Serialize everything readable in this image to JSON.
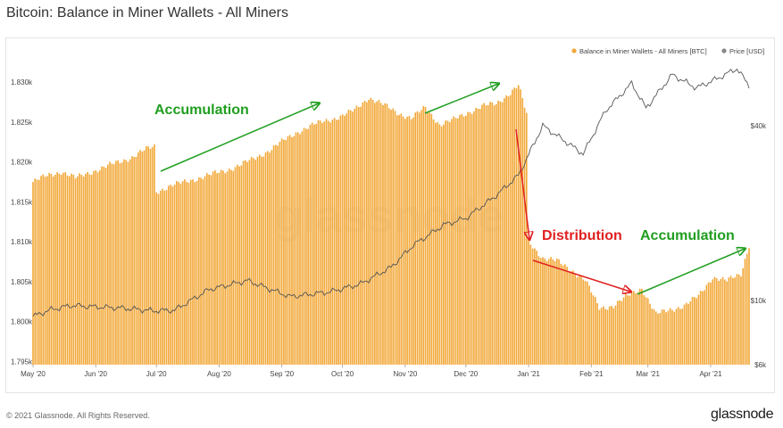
{
  "title": "Bitcoin: Balance in Miner Wallets - All Miners",
  "footer": {
    "copyright": "© 2021 Glassnode. All Rights Reserved.",
    "brand": "glassnode"
  },
  "watermark": "glassnode",
  "colors": {
    "bar": "#f2a93b",
    "price": "#555555",
    "accumulation": "#1f9e1f",
    "distribution": "#e02020"
  },
  "chart_data": {
    "type": "bar",
    "legend": [
      {
        "label": "Balance in Miner Wallets - All Miners [BTC]",
        "color": "#f2a93b"
      },
      {
        "label": "Price [USD]",
        "color": "#888888"
      }
    ],
    "legend_placement": "top-right",
    "y_left": {
      "ticks": [
        "1.830k",
        "1.825k",
        "1.820k",
        "1.815k",
        "1.810k",
        "1.805k",
        "1.800k",
        "1.795k"
      ],
      "range": [
        1794600,
        1833600
      ]
    },
    "y_right": {
      "ticks": [
        "$40k",
        "$10k",
        "$6k"
      ],
      "scale": "log"
    },
    "x_ticks": [
      "May '20",
      "Jun '20",
      "Jul '20",
      "Aug '20",
      "Sep '20",
      "Oct '20",
      "Nov '20",
      "Dec '20",
      "Jan '21",
      "Feb '21",
      "Mar '21",
      "Apr '21"
    ],
    "x_range": [
      "2020-05-01",
      "2021-04-20"
    ],
    "series": [
      {
        "type": "bar",
        "name": "Balance in Miner Wallets - All Miners [BTC]",
        "points": [
          [
            "2020-05-01",
            1817500
          ],
          [
            "2020-05-08",
            1818300
          ],
          [
            "2020-05-15",
            1818800
          ],
          [
            "2020-05-22",
            1818000
          ],
          [
            "2020-05-29",
            1818700
          ],
          [
            "2020-06-05",
            1819300
          ],
          [
            "2020-06-12",
            1820000
          ],
          [
            "2020-06-19",
            1820600
          ],
          [
            "2020-06-26",
            1821600
          ],
          [
            "2020-06-30",
            1822000
          ],
          [
            "2020-07-01",
            1816300
          ],
          [
            "2020-07-08",
            1817000
          ],
          [
            "2020-07-15",
            1817500
          ],
          [
            "2020-07-22",
            1818000
          ],
          [
            "2020-07-29",
            1818500
          ],
          [
            "2020-08-05",
            1819000
          ],
          [
            "2020-08-12",
            1819700
          ],
          [
            "2020-08-19",
            1820500
          ],
          [
            "2020-08-26",
            1821500
          ],
          [
            "2020-09-02",
            1822700
          ],
          [
            "2020-09-09",
            1823800
          ],
          [
            "2020-09-16",
            1824600
          ],
          [
            "2020-09-23",
            1825200
          ],
          [
            "2020-09-30",
            1825700
          ],
          [
            "2020-10-07",
            1826500
          ],
          [
            "2020-10-14",
            1828100
          ],
          [
            "2020-10-21",
            1827200
          ],
          [
            "2020-10-28",
            1826200
          ],
          [
            "2020-11-04",
            1825500
          ],
          [
            "2020-11-11",
            1826800
          ],
          [
            "2020-11-18",
            1824700
          ],
          [
            "2020-11-25",
            1825300
          ],
          [
            "2020-12-02",
            1826200
          ],
          [
            "2020-12-09",
            1827000
          ],
          [
            "2020-12-16",
            1827300
          ],
          [
            "2020-12-23",
            1828700
          ],
          [
            "2020-12-27",
            1829600
          ],
          [
            "2020-12-31",
            1826000
          ],
          [
            "2021-01-01",
            1810000
          ],
          [
            "2021-01-08",
            1808000
          ],
          [
            "2021-01-15",
            1807600
          ],
          [
            "2021-01-22",
            1806500
          ],
          [
            "2021-01-29",
            1805200
          ],
          [
            "2021-02-05",
            1801700
          ],
          [
            "2021-02-12",
            1802000
          ],
          [
            "2021-02-19",
            1803200
          ],
          [
            "2021-02-26",
            1804200
          ],
          [
            "2021-03-05",
            1800900
          ],
          [
            "2021-03-12",
            1801500
          ],
          [
            "2021-03-19",
            1802000
          ],
          [
            "2021-03-26",
            1803200
          ],
          [
            "2021-04-02",
            1805600
          ],
          [
            "2021-04-09",
            1805100
          ],
          [
            "2021-04-16",
            1806000
          ],
          [
            "2021-04-20",
            1809600
          ]
        ]
      },
      {
        "type": "line",
        "name": "Price [USD]",
        "points": [
          [
            "2020-05-01",
            8800
          ],
          [
            "2020-05-10",
            9300
          ],
          [
            "2020-05-20",
            9600
          ],
          [
            "2020-06-01",
            9500
          ],
          [
            "2020-06-15",
            9400
          ],
          [
            "2020-06-30",
            9200
          ],
          [
            "2020-07-10",
            9250
          ],
          [
            "2020-07-27",
            10900
          ],
          [
            "2020-08-15",
            11700
          ],
          [
            "2020-09-05",
            10300
          ],
          [
            "2020-09-25",
            10700
          ],
          [
            "2020-10-10",
            11400
          ],
          [
            "2020-10-25",
            13000
          ],
          [
            "2020-11-05",
            15500
          ],
          [
            "2020-11-20",
            18200
          ],
          [
            "2020-12-01",
            19200
          ],
          [
            "2020-12-16",
            23000
          ],
          [
            "2020-12-27",
            27000
          ],
          [
            "2021-01-08",
            40000
          ],
          [
            "2021-01-15",
            37000
          ],
          [
            "2021-01-28",
            32000
          ],
          [
            "2021-02-08",
            45000
          ],
          [
            "2021-02-21",
            56000
          ],
          [
            "2021-02-28",
            46000
          ],
          [
            "2021-03-13",
            60000
          ],
          [
            "2021-03-25",
            54000
          ],
          [
            "2021-04-05",
            58500
          ],
          [
            "2021-04-14",
            63000
          ],
          [
            "2021-04-20",
            55000
          ]
        ]
      }
    ],
    "annotations": [
      {
        "text": "Accumulation",
        "color": "#1f9e1f"
      },
      {
        "text": "Distribution",
        "color": "#e02020"
      },
      {
        "text": "Accumulation",
        "color": "#1f9e1f"
      }
    ]
  }
}
